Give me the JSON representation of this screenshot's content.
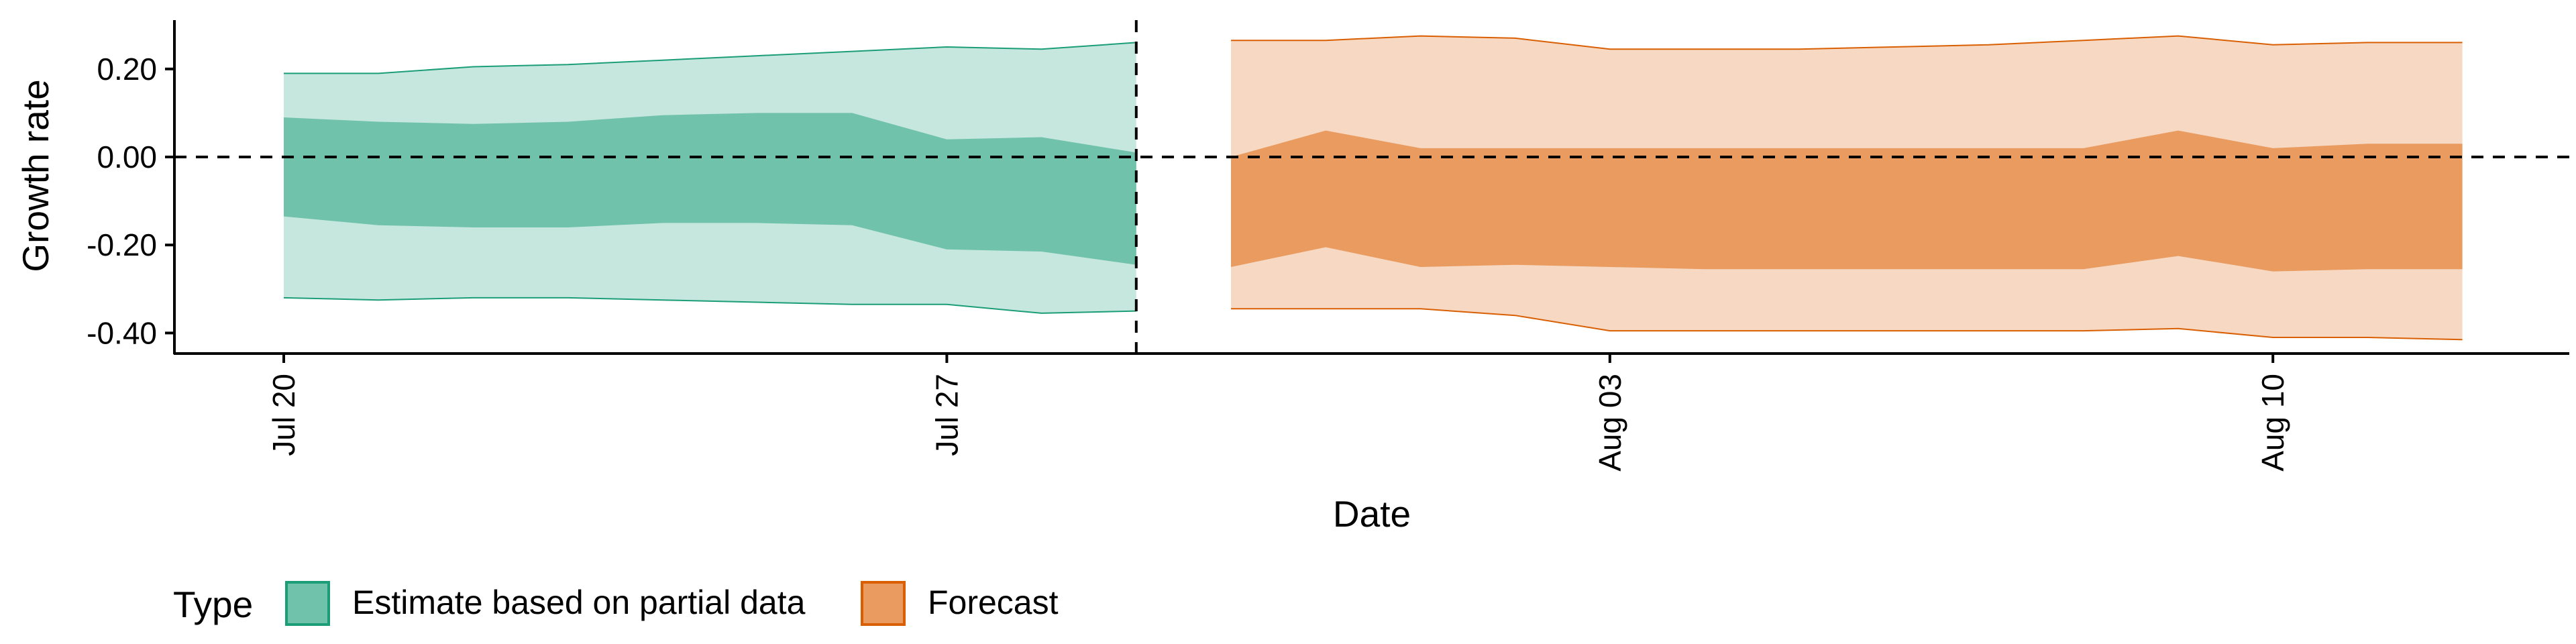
{
  "chart_data": {
    "type": "area",
    "xlabel": "Date",
    "ylabel": "Growth rate",
    "x_ticks": [
      "Jul 20",
      "Jul 27",
      "Aug 03",
      "Aug 10"
    ],
    "y_ticks": [
      "0.20",
      "0.00",
      "-0.20",
      "-0.40"
    ],
    "ylim": [
      -0.45,
      0.31
    ],
    "reference_lines": {
      "horizontal_y": 0.0,
      "vertical_x": "2020-07-29"
    },
    "legend": {
      "title": "Type",
      "position": "bottom-left",
      "entries": [
        "Estimate based on partial data",
        "Forecast"
      ]
    },
    "colors": {
      "estimate_inner": "#71c2ab",
      "estimate_outer": "#c5e7dd",
      "estimate_line": "#1b9e77",
      "forecast_inner": "#e99b60",
      "forecast_outer": "#f6d8c3",
      "forecast_line": "#d95f02"
    },
    "series": [
      {
        "name": "Estimate based on partial data",
        "x": [
          "2020-07-20",
          "2020-07-21",
          "2020-07-22",
          "2020-07-23",
          "2020-07-24",
          "2020-07-25",
          "2020-07-26",
          "2020-07-27",
          "2020-07-28",
          "2020-07-29"
        ],
        "upper_90": [
          0.19,
          0.19,
          0.205,
          0.21,
          0.22,
          0.23,
          0.24,
          0.25,
          0.245,
          0.26
        ],
        "upper_50": [
          0.09,
          0.08,
          0.075,
          0.08,
          0.095,
          0.1,
          0.1,
          0.04,
          0.045,
          0.01
        ],
        "lower_50": [
          -0.135,
          -0.155,
          -0.16,
          -0.16,
          -0.15,
          -0.15,
          -0.155,
          -0.21,
          -0.215,
          -0.245
        ],
        "lower_90": [
          -0.32,
          -0.325,
          -0.32,
          -0.32,
          -0.325,
          -0.33,
          -0.335,
          -0.335,
          -0.355,
          -0.35
        ]
      },
      {
        "name": "Forecast",
        "x": [
          "2020-07-30",
          "2020-07-31",
          "2020-08-01",
          "2020-08-02",
          "2020-08-03",
          "2020-08-04",
          "2020-08-05",
          "2020-08-06",
          "2020-08-07",
          "2020-08-08",
          "2020-08-09",
          "2020-08-10",
          "2020-08-11",
          "2020-08-12"
        ],
        "upper_90": [
          0.265,
          0.265,
          0.275,
          0.27,
          0.245,
          0.245,
          0.245,
          0.25,
          0.255,
          0.265,
          0.275,
          0.255,
          0.26,
          0.26
        ],
        "upper_50": [
          0.0,
          0.06,
          0.02,
          0.02,
          0.02,
          0.02,
          0.02,
          0.02,
          0.02,
          0.02,
          0.06,
          0.02,
          0.03,
          0.03
        ],
        "lower_50": [
          -0.25,
          -0.205,
          -0.25,
          -0.245,
          -0.25,
          -0.255,
          -0.255,
          -0.255,
          -0.255,
          -0.255,
          -0.225,
          -0.26,
          -0.255,
          -0.255
        ],
        "lower_90": [
          -0.345,
          -0.345,
          -0.345,
          -0.36,
          -0.395,
          -0.395,
          -0.395,
          -0.395,
          -0.395,
          -0.395,
          -0.39,
          -0.41,
          -0.41,
          -0.415
        ]
      }
    ]
  }
}
